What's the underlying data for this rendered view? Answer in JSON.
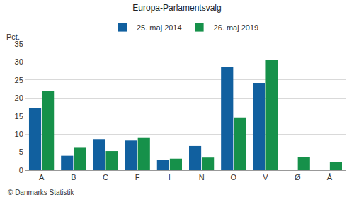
{
  "chart_data": {
    "type": "bar",
    "title": "Europa-Parlamentsvalg",
    "y_label": "Pct.",
    "annotations": [
      "© Danmarks Statistik"
    ],
    "categories": [
      "A",
      "B",
      "C",
      "F",
      "I",
      "N",
      "O",
      "V",
      "Ø",
      "Å"
    ],
    "series": [
      {
        "name": "25. maj 2014",
        "color": "#11609f",
        "values": [
          17.3,
          4.0,
          8.6,
          8.2,
          2.8,
          6.7,
          28.7,
          24.2,
          null,
          null
        ]
      },
      {
        "name": "26. maj 2019",
        "color": "#16914a",
        "values": [
          21.9,
          6.4,
          5.3,
          9.1,
          3.2,
          3.5,
          14.6,
          30.5,
          3.7,
          2.2
        ]
      }
    ],
    "ylim": [
      0,
      35
    ],
    "yticks": [
      0,
      5,
      10,
      15,
      20,
      25,
      30,
      35
    ],
    "grid": true,
    "legend": "top"
  }
}
